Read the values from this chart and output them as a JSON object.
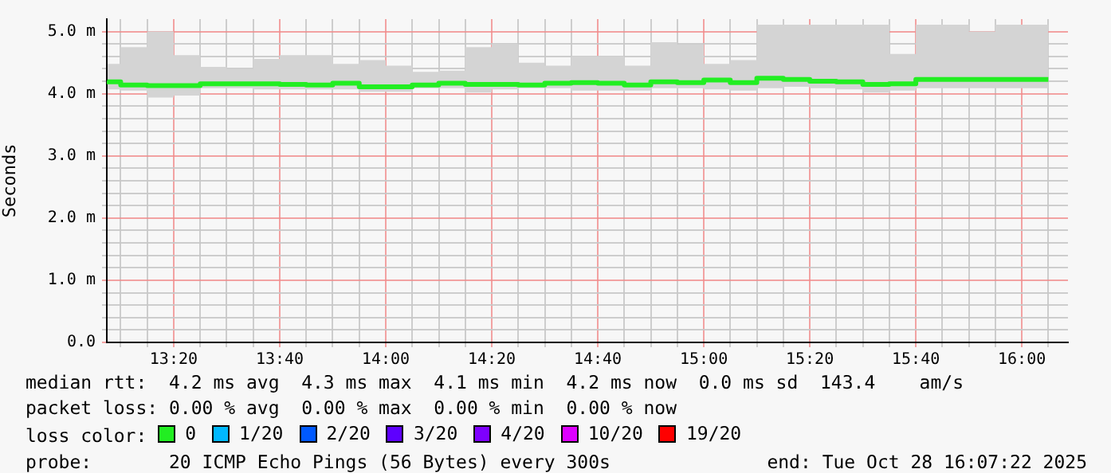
{
  "chart_data": {
    "type": "step",
    "ylabel": "Seconds",
    "x": [
      13.125,
      13.1667,
      13.25,
      13.3333,
      13.4167,
      13.5,
      13.5833,
      13.6667,
      13.75,
      13.8333,
      13.9167,
      14,
      14.0833,
      14.1667,
      14.25,
      14.3333,
      14.4167,
      14.5,
      14.5833,
      14.6667,
      14.75,
      14.8333,
      14.9167,
      15,
      15.0833,
      15.1667,
      15.25,
      15.3333,
      15.4167,
      15.5,
      15.5833,
      15.6667,
      15.75,
      15.8333,
      15.9167,
      16,
      16.0833
    ],
    "series": [
      {
        "name": "0",
        "color": "#22ee22",
        "values": [
          4.21,
          4.19,
          4.14,
          4.13,
          4.13,
          4.16,
          4.16,
          4.16,
          4.15,
          4.14,
          4.17,
          4.11,
          4.11,
          4.14,
          4.17,
          4.15,
          4.15,
          4.14,
          4.17,
          4.18,
          4.17,
          4.14,
          4.19,
          4.18,
          4.22,
          4.18,
          4.25,
          4.23,
          4.2,
          4.19,
          4.15,
          4.16,
          4.23,
          4.23,
          4.23,
          4.23,
          4.23
        ],
        "lower": [
          4.11,
          4.07,
          4.05,
          3.94,
          3.97,
          4.09,
          4.09,
          4.07,
          4.07,
          4.07,
          4.07,
          4.03,
          4.03,
          4.09,
          4.09,
          4.02,
          4.07,
          4.09,
          4.09,
          4.05,
          4.05,
          4.05,
          4.09,
          4.09,
          4.07,
          4.05,
          4.09,
          4.11,
          4.09,
          4.07,
          4.02,
          4.05,
          4.09,
          4.09,
          4.09,
          4.09,
          4.09
        ],
        "upper": [
          4.62,
          4.48,
          4.75,
          5.0,
          4.62,
          4.43,
          4.4,
          4.56,
          4.62,
          4.62,
          4.48,
          4.54,
          4.45,
          4.35,
          4.37,
          4.75,
          4.8,
          4.5,
          4.45,
          4.6,
          4.6,
          4.45,
          4.83,
          4.79,
          4.48,
          4.54,
          5.11,
          5.11,
          5.11,
          5.11,
          5.11,
          4.64,
          5.11,
          5.11,
          5.0,
          5.11,
          5.11
        ]
      },
      {
        "name": "1/20",
        "color": "#00b8ff",
        "values": [
          null,
          null,
          null,
          null,
          null,
          null,
          null,
          null,
          null,
          null,
          null,
          null,
          null,
          null,
          null,
          null,
          null,
          null,
          null,
          null,
          null,
          null,
          null,
          null,
          null,
          null,
          null,
          null,
          null,
          null,
          null,
          null,
          null,
          null,
          null,
          null,
          null
        ]
      },
      {
        "name": "2/20",
        "color": "#0059ff",
        "values": [
          null,
          null,
          null,
          null,
          null,
          null,
          null,
          null,
          null,
          null,
          null,
          null,
          null,
          null,
          null,
          null,
          null,
          null,
          null,
          null,
          null,
          null,
          null,
          null,
          null,
          null,
          null,
          null,
          null,
          null,
          null,
          null,
          null,
          null,
          null,
          null,
          null
        ]
      },
      {
        "name": "3/20",
        "color": "#5e00ff",
        "values": [
          null,
          null,
          null,
          null,
          null,
          null,
          null,
          null,
          null,
          null,
          null,
          null,
          null,
          null,
          null,
          null,
          null,
          null,
          null,
          null,
          null,
          null,
          null,
          null,
          null,
          null,
          null,
          null,
          null,
          null,
          null,
          null,
          null,
          null,
          null,
          null,
          null
        ]
      },
      {
        "name": "4/20",
        "color": "#7e00ff",
        "values": [
          null,
          null,
          null,
          null,
          null,
          null,
          null,
          null,
          null,
          null,
          null,
          null,
          null,
          null,
          null,
          null,
          null,
          null,
          null,
          null,
          null,
          null,
          null,
          null,
          null,
          null,
          null,
          null,
          null,
          null,
          null,
          null,
          null,
          null,
          null,
          null,
          null
        ]
      },
      {
        "name": "10/20",
        "color": "#dd00ff",
        "values": [
          null,
          null,
          null,
          null,
          null,
          null,
          null,
          null,
          null,
          null,
          null,
          null,
          null,
          null,
          null,
          null,
          null,
          null,
          null,
          null,
          null,
          null,
          null,
          null,
          null,
          null,
          null,
          null,
          null,
          null,
          null,
          null,
          null,
          null,
          null,
          null,
          null
        ]
      },
      {
        "name": "19/20",
        "color": "#ff0000",
        "values": [
          null,
          null,
          null,
          null,
          null,
          null,
          null,
          null,
          null,
          null,
          null,
          null,
          null,
          null,
          null,
          null,
          null,
          null,
          null,
          null,
          null,
          null,
          null,
          null,
          null,
          null,
          null,
          null,
          null,
          null,
          null,
          null,
          null,
          null,
          null,
          null,
          null
        ]
      }
    ],
    "xlim": [
      13.123,
      16.145
    ],
    "xticks": [
      {
        "value": 13.1667,
        "label": null
      },
      {
        "value": 13.25,
        "label": null
      },
      {
        "value": 13.3333,
        "label": "13:20"
      },
      {
        "value": 13.4167,
        "label": null
      },
      {
        "value": 13.5,
        "label": null
      },
      {
        "value": 13.5833,
        "label": null
      },
      {
        "value": 13.6667,
        "label": "13:40"
      },
      {
        "value": 13.75,
        "label": null
      },
      {
        "value": 13.8333,
        "label": null
      },
      {
        "value": 13.9167,
        "label": null
      },
      {
        "value": 14,
        "label": "14:00"
      },
      {
        "value": 14.0833,
        "label": null
      },
      {
        "value": 14.1667,
        "label": null
      },
      {
        "value": 14.25,
        "label": null
      },
      {
        "value": 14.3333,
        "label": "14:20"
      },
      {
        "value": 14.4167,
        "label": null
      },
      {
        "value": 14.5,
        "label": null
      },
      {
        "value": 14.5833,
        "label": null
      },
      {
        "value": 14.6667,
        "label": "14:40"
      },
      {
        "value": 14.75,
        "label": null
      },
      {
        "value": 14.8333,
        "label": null
      },
      {
        "value": 14.9167,
        "label": null
      },
      {
        "value": 15,
        "label": "15:00"
      },
      {
        "value": 15.0833,
        "label": null
      },
      {
        "value": 15.1667,
        "label": null
      },
      {
        "value": 15.25,
        "label": null
      },
      {
        "value": 15.3333,
        "label": "15:20"
      },
      {
        "value": 15.4167,
        "label": null
      },
      {
        "value": 15.5,
        "label": null
      },
      {
        "value": 15.5833,
        "label": null
      },
      {
        "value": 15.6667,
        "label": "15:40"
      },
      {
        "value": 15.75,
        "label": null
      },
      {
        "value": 15.8333,
        "label": null
      },
      {
        "value": 15.9167,
        "label": null
      },
      {
        "value": 16,
        "label": "16:00"
      },
      {
        "value": 16.0833,
        "label": null
      }
    ],
    "ylim": [
      0,
      5.2
    ],
    "yticks": [
      {
        "value": 0,
        "label": "0.0"
      },
      {
        "value": 0.2,
        "label": null
      },
      {
        "value": 0.4,
        "label": null
      },
      {
        "value": 0.6,
        "label": null
      },
      {
        "value": 0.8,
        "label": null
      },
      {
        "value": 1,
        "label": "1.0 m"
      },
      {
        "value": 1.2,
        "label": null
      },
      {
        "value": 1.4,
        "label": null
      },
      {
        "value": 1.6,
        "label": null
      },
      {
        "value": 1.8,
        "label": null
      },
      {
        "value": 2,
        "label": "2.0 m"
      },
      {
        "value": 2.2,
        "label": null
      },
      {
        "value": 2.4,
        "label": null
      },
      {
        "value": 2.6,
        "label": null
      },
      {
        "value": 2.8,
        "label": null
      },
      {
        "value": 3,
        "label": "3.0 m"
      },
      {
        "value": 3.2,
        "label": null
      },
      {
        "value": 3.4,
        "label": null
      },
      {
        "value": 3.6,
        "label": null
      },
      {
        "value": 3.8,
        "label": null
      },
      {
        "value": 4,
        "label": "4.0 m"
      },
      {
        "value": 4.2,
        "label": null
      },
      {
        "value": 4.4,
        "label": null
      },
      {
        "value": 4.6,
        "label": null
      },
      {
        "value": 4.8,
        "label": null
      },
      {
        "value": 5,
        "label": "5.0 m"
      }
    ],
    "grid": true,
    "legend": "bottom",
    "legend_title": "loss color:",
    "annotations": [
      "median rtt:  4.2 ms avg  4.3 ms max  4.1 ms min  4.2 ms now  0.0 ms sd  143.4    am/s",
      "packet loss: 0.00 % avg  0.00 % max  0.00 % min  0.00 % now",
      "probe:       20 ICMP Echo Pings (56 Bytes) every 300s",
      "end: Tue Oct 28 16:07:22 2025"
    ]
  }
}
